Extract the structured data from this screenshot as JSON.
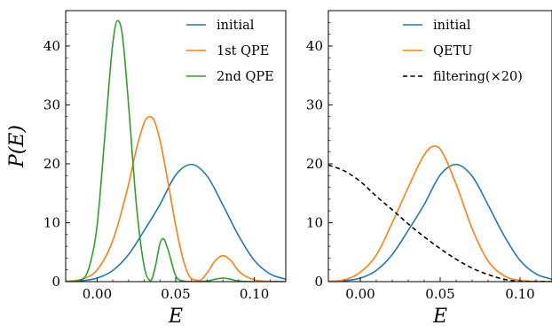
{
  "chart_data": [
    {
      "type": "line",
      "title": "",
      "xlabel": "E",
      "ylabel": "P(E)",
      "xlim": [
        -0.02,
        0.12
      ],
      "ylim": [
        0,
        46
      ],
      "xticks": [
        0.0,
        0.05,
        0.1
      ],
      "xtick_labels": [
        "0.00",
        "0.05",
        "0.10"
      ],
      "yticks": [
        0,
        10,
        20,
        30,
        40
      ],
      "ytick_labels": [
        "0",
        "10",
        "20",
        "30",
        "40"
      ],
      "grid": false,
      "legend": "top-right",
      "series": [
        {
          "name": "initial",
          "color": "#1f77b4",
          "style": "solid",
          "x": [
            -0.02,
            -0.01,
            0.0,
            0.01,
            0.02,
            0.03,
            0.04,
            0.05,
            0.06,
            0.07,
            0.08,
            0.09,
            0.1,
            0.11,
            0.12
          ],
          "y": [
            0.03,
            0.15,
            0.6,
            1.9,
            4.6,
            8.7,
            13.1,
            18.1,
            19.9,
            17.9,
            13.0,
            7.8,
            3.6,
            1.3,
            0.4
          ]
        },
        {
          "name": "1st QPE",
          "color": "#ff7f0e",
          "style": "solid",
          "x": [
            -0.02,
            -0.01,
            0.0,
            0.01,
            0.02,
            0.025,
            0.03,
            0.033,
            0.036,
            0.04,
            0.045,
            0.05,
            0.055,
            0.06,
            0.065,
            0.07,
            0.075,
            0.08,
            0.085,
            0.09,
            0.1,
            0.11,
            0.12
          ],
          "y": [
            0.05,
            0.4,
            2.0,
            7.0,
            16.5,
            22.5,
            27.0,
            28.0,
            27.5,
            24.0,
            17.0,
            9.5,
            3.5,
            0.5,
            0.2,
            1.5,
            3.5,
            4.4,
            3.6,
            1.8,
            0.3,
            0.05,
            0.0
          ]
        },
        {
          "name": "2nd QPE",
          "color": "#2ca02c",
          "style": "solid",
          "x": [
            -0.02,
            -0.01,
            -0.005,
            0.0,
            0.005,
            0.01,
            0.013,
            0.016,
            0.02,
            0.025,
            0.03,
            0.034,
            0.037,
            0.04,
            0.042,
            0.045,
            0.05,
            0.055,
            0.06,
            0.07,
            0.075,
            0.08,
            0.085,
            0.09,
            0.1,
            0.12
          ],
          "y": [
            0.0,
            0.3,
            2.5,
            9.5,
            25.0,
            40.5,
            44.3,
            42.0,
            30.0,
            13.0,
            2.5,
            0.2,
            2.5,
            6.5,
            7.3,
            5.5,
            1.0,
            0.1,
            0.0,
            0.1,
            0.4,
            0.6,
            0.4,
            0.1,
            0.0,
            0.0
          ]
        }
      ]
    },
    {
      "type": "line",
      "title": "",
      "xlabel": "E",
      "ylabel": "",
      "xlim": [
        -0.02,
        0.12
      ],
      "ylim": [
        0,
        46
      ],
      "xticks": [
        0.0,
        0.05,
        0.1
      ],
      "xtick_labels": [
        "0.00",
        "0.05",
        "0.10"
      ],
      "yticks": [
        0,
        10,
        20,
        30,
        40
      ],
      "ytick_labels": [
        "0",
        "10",
        "20",
        "30",
        "40"
      ],
      "grid": false,
      "legend": "top-right",
      "series": [
        {
          "name": "initial",
          "color": "#1f77b4",
          "style": "solid",
          "x": [
            -0.02,
            -0.01,
            0.0,
            0.01,
            0.02,
            0.03,
            0.04,
            0.05,
            0.06,
            0.07,
            0.08,
            0.09,
            0.1,
            0.11,
            0.12
          ],
          "y": [
            0.03,
            0.15,
            0.6,
            1.9,
            4.6,
            8.7,
            13.1,
            18.1,
            19.9,
            17.9,
            13.0,
            7.8,
            3.6,
            1.3,
            0.4
          ]
        },
        {
          "name": "QETU",
          "color": "#ff7f0e",
          "style": "solid",
          "x": [
            -0.02,
            -0.01,
            0.0,
            0.01,
            0.02,
            0.03,
            0.04,
            0.046,
            0.05,
            0.06,
            0.07,
            0.08,
            0.09,
            0.1,
            0.12
          ],
          "y": [
            0.05,
            0.3,
            1.6,
            4.5,
            10.0,
            16.0,
            21.5,
            23.0,
            22.5,
            16.5,
            9.0,
            3.5,
            1.0,
            0.2,
            0.0
          ]
        },
        {
          "name": "filtering(×20)",
          "color": "#000000",
          "style": "dashed",
          "x": [
            -0.02,
            -0.01,
            0.0,
            0.01,
            0.02,
            0.03,
            0.04,
            0.05,
            0.06,
            0.07,
            0.08,
            0.09,
            0.1,
            0.12
          ],
          "y": [
            19.8,
            18.8,
            17.0,
            14.5,
            12.2,
            9.8,
            7.6,
            5.6,
            3.8,
            2.3,
            1.2,
            0.4,
            0.05,
            0.0
          ]
        }
      ]
    }
  ]
}
